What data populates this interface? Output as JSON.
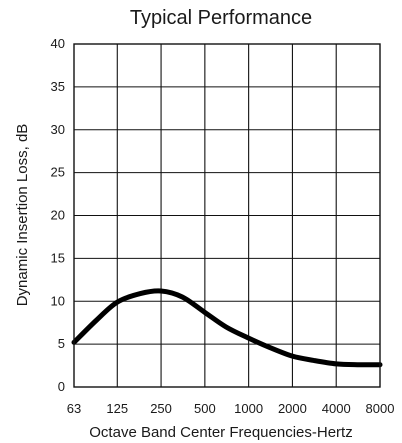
{
  "chart_data": {
    "type": "line",
    "title": "Typical Performance",
    "xlabel": "Octave Band Center Frequencies-Hertz",
    "ylabel": "Dynamic Insertion Loss, dB",
    "categories": [
      "63",
      "125",
      "250",
      "500",
      "1000",
      "2000",
      "4000",
      "8000"
    ],
    "x_scale": "log2",
    "ylim": [
      0,
      40
    ],
    "y_ticks": [
      0,
      5,
      10,
      15,
      20,
      25,
      30,
      35,
      40
    ],
    "grid": true,
    "legend": "none",
    "colors": {
      "line": "#000000",
      "grid": "#111111",
      "text": "#1a1a1a"
    },
    "series": [
      {
        "x": [
          63,
          90,
          125,
          180,
          250,
          350,
          500,
          700,
          1000,
          1400,
          2000,
          2800,
          4000,
          5600,
          8000
        ],
        "values": [
          5.2,
          7.8,
          9.9,
          10.9,
          11.2,
          10.5,
          8.7,
          7.0,
          5.7,
          4.6,
          3.6,
          3.1,
          2.7,
          2.6,
          2.6
        ]
      }
    ]
  }
}
